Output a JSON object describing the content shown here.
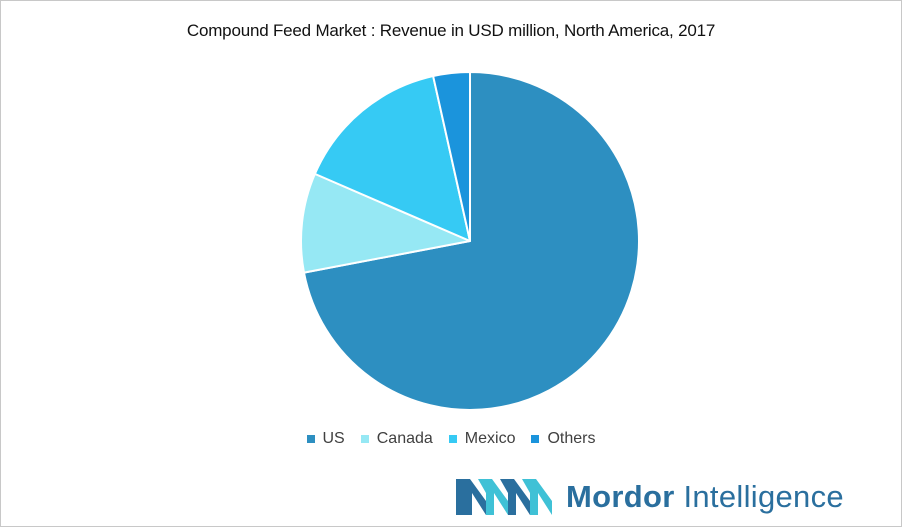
{
  "chart_data": {
    "type": "pie",
    "title": "Compound Feed Market : Revenue in USD million, North America, 2017",
    "categories": [
      "US",
      "Canada",
      "Mexico",
      "Others"
    ],
    "values": [
      72,
      9.5,
      15,
      3.5
    ],
    "colors": [
      "#2d8fc1",
      "#96e8f4",
      "#36caf4",
      "#1b94dc"
    ],
    "legend_position": "bottom"
  },
  "branding": {
    "logo_word_1": "Mordor",
    "logo_word_2": " Intelligence",
    "logo_colors": [
      "#2a6f9e",
      "#3fc1d6"
    ]
  }
}
